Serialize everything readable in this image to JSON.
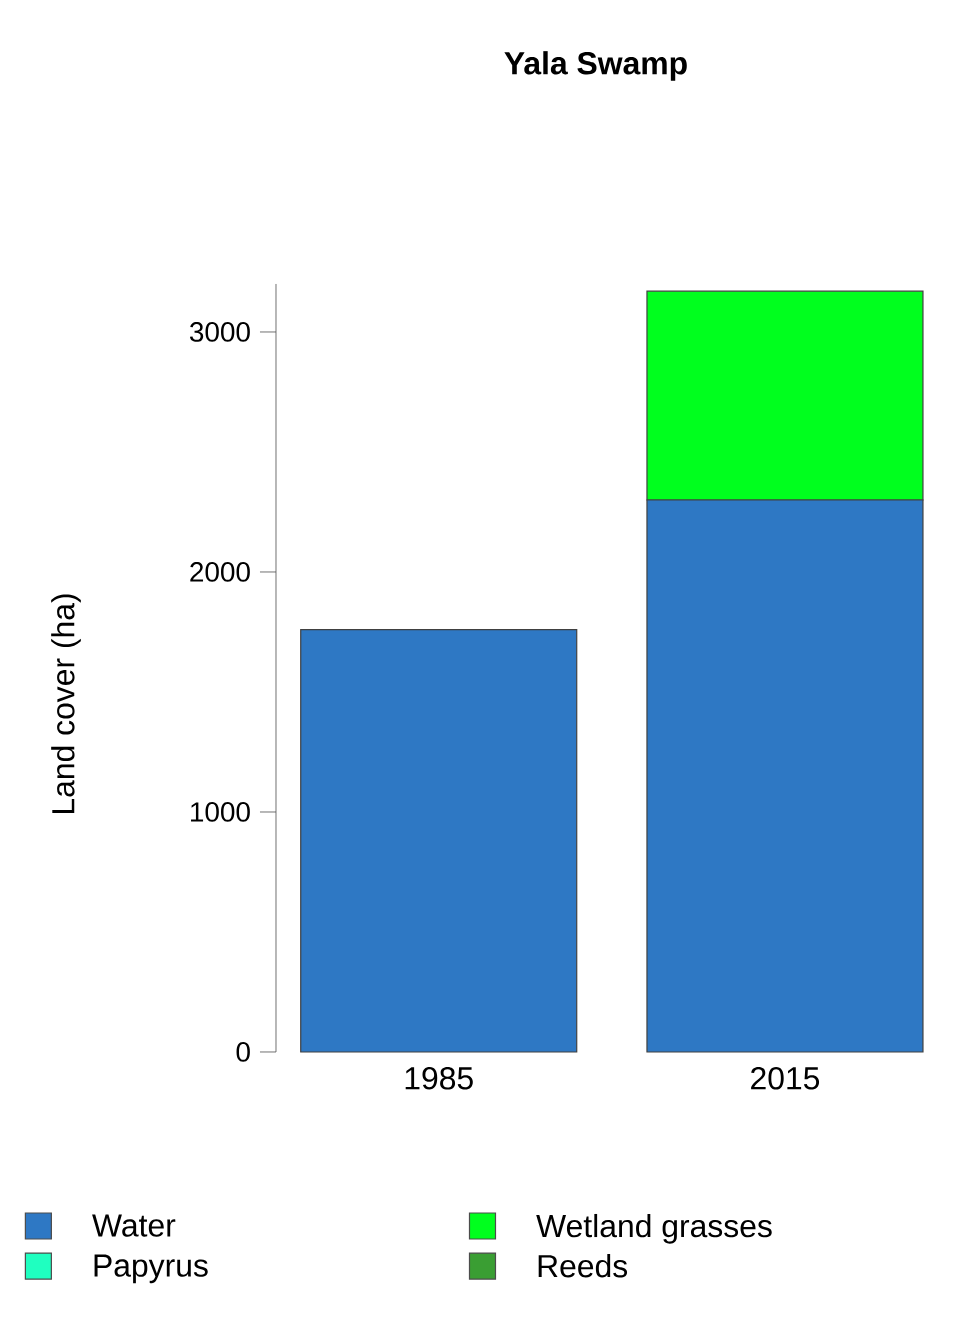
{
  "chart_data": {
    "type": "bar",
    "title": "Yala Swamp",
    "ylabel": "Land cover (ha)",
    "categories": [
      "1985",
      "2015"
    ],
    "stacked": true,
    "series": [
      {
        "name": "Water",
        "color": "#2e78c4",
        "values": [
          1760,
          2300
        ]
      },
      {
        "name": "Papyrus",
        "color": "#1fffc0",
        "values": [
          0,
          0
        ]
      },
      {
        "name": "Wetland grasses",
        "color": "#00ff1e",
        "values": [
          0,
          870
        ]
      },
      {
        "name": "Reeds",
        "color": "#3a9e33",
        "values": [
          0,
          0
        ]
      }
    ],
    "ylim": [
      0,
      3200
    ],
    "yticks": [
      0,
      1000,
      2000,
      3000
    ],
    "legend": "bottom"
  }
}
